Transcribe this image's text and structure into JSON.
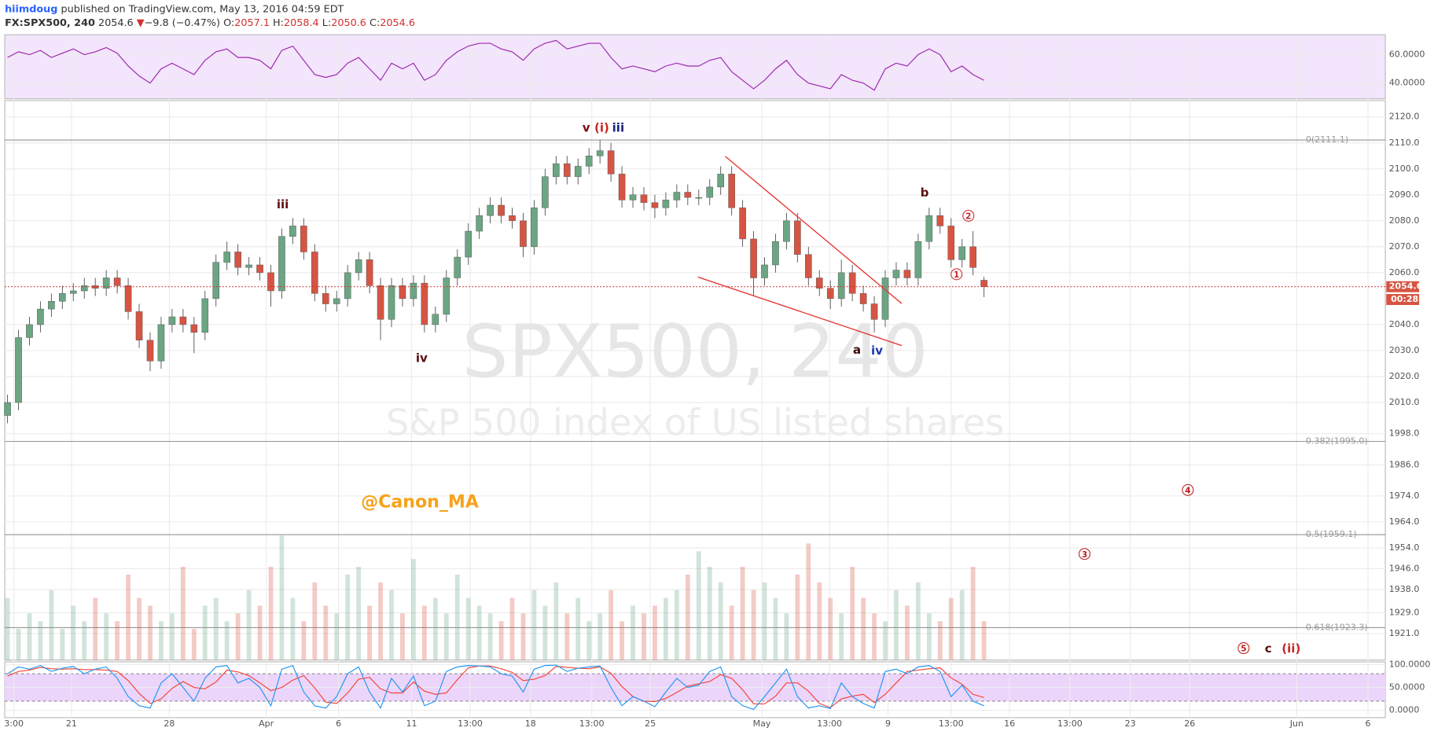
{
  "header": {
    "author": "hiimdoug",
    "published": "published on TradingView.com, May 13, 2016 04:59 EDT",
    "symbol": "FX:SPX500, 240",
    "arrow": "▼",
    "change": "−9.8 (−0.47%)",
    "ohlc_labels": [
      "O:",
      "H:",
      "L:",
      "C:"
    ]
  },
  "chart_data": {
    "type": "candlestick",
    "watermark": "SPX500, 240",
    "watermark_subtitle": "S&P 500 index of US listed shares",
    "signature": "@Canon_MA",
    "countdown": "00:28",
    "up_color": "#6ba583",
    "down_color": "#d75442",
    "grid": true,
    "xlim": [
      -0.25,
      125.58
    ],
    "xticks": [
      {
        "value": 0.58,
        "label": "3:00"
      },
      {
        "value": 5.83,
        "label": "21"
      },
      {
        "value": 14.75,
        "label": "28"
      },
      {
        "value": 23.58,
        "label": "Apr"
      },
      {
        "value": 30.17,
        "label": "6"
      },
      {
        "value": 36.83,
        "label": "11"
      },
      {
        "value": 42.17,
        "label": "13:00"
      },
      {
        "value": 47.67,
        "label": "18"
      },
      {
        "value": 53.25,
        "label": "13:00"
      },
      {
        "value": 58.58,
        "label": "25"
      },
      {
        "value": 68.75,
        "label": "May"
      },
      {
        "value": 74.92,
        "label": "13:00"
      },
      {
        "value": 80.25,
        "label": "9"
      },
      {
        "value": 86,
        "label": "13:00"
      },
      {
        "value": 91.33,
        "label": "16"
      },
      {
        "value": 96.83,
        "label": "13:00"
      },
      {
        "value": 102.33,
        "label": "23"
      },
      {
        "value": 107.75,
        "label": "26"
      },
      {
        "value": 117.5,
        "label": "Jun"
      },
      {
        "value": 124,
        "label": "6"
      }
    ],
    "ylim": [
      1910.8,
      2126.3
    ],
    "yticks": [
      {
        "value": 2120,
        "label": "2120.0"
      },
      {
        "value": 2110,
        "label": "2110.0"
      },
      {
        "value": 2100,
        "label": "2100.0"
      },
      {
        "value": 2090,
        "label": "2090.0"
      },
      {
        "value": 2080,
        "label": "2080.0"
      },
      {
        "value": 2070,
        "label": "2070.0"
      },
      {
        "value": 2060,
        "label": "2060.0"
      },
      {
        "value": 2040,
        "label": "2040.0"
      },
      {
        "value": 2030,
        "label": "2030.0"
      },
      {
        "value": 2020,
        "label": "2020.0"
      },
      {
        "value": 2010,
        "label": "2010.0"
      },
      {
        "value": 1998,
        "label": "1998.0"
      },
      {
        "value": 1986,
        "label": "1986.0"
      },
      {
        "value": 1974,
        "label": "1974.0"
      },
      {
        "value": 1964,
        "label": "1964.0"
      },
      {
        "value": 1954,
        "label": "1954.0"
      },
      {
        "value": 1946,
        "label": "1946.0"
      },
      {
        "value": 1938,
        "label": "1938.0"
      },
      {
        "value": 1929,
        "label": "1929.0"
      },
      {
        "value": 1921,
        "label": "1921.0"
      }
    ],
    "fib_levels": [
      {
        "value": 2111.1,
        "label": "0(2111.1)"
      },
      {
        "value": 1995.0,
        "label": "0.382(1995.0)"
      },
      {
        "value": 1959.1,
        "label": "0.5(1959.1)"
      },
      {
        "value": 1923.3,
        "label": "0.618(1923.3)"
      }
    ],
    "open": [
      2005,
      2010,
      2035,
      2040,
      2046,
      2049,
      2052,
      2053,
      2055,
      2054,
      2058,
      2055,
      2045,
      2034,
      2026,
      2040,
      2043,
      2040,
      2037,
      2050,
      2064,
      2068,
      2062,
      2063,
      2060,
      2053,
      2074,
      2078,
      2068,
      2052,
      2048,
      2050,
      2060,
      2065,
      2055,
      2042,
      2055,
      2050,
      2056,
      2040,
      2044,
      2058,
      2066,
      2076,
      2082,
      2086,
      2082,
      2080,
      2070,
      2085,
      2097,
      2102,
      2097,
      2101,
      2105,
      2107,
      2098,
      2088,
      2090,
      2087,
      2085,
      2088,
      2091,
      2089,
      2089,
      2093,
      2098,
      2085,
      2073,
      2058,
      2063,
      2072,
      2080,
      2067,
      2058,
      2054,
      2050,
      2060,
      2052,
      2048,
      2042,
      2058,
      2061,
      2058,
      2072,
      2082,
      2078,
      2065,
      2070,
      2057.1
    ],
    "high": [
      2013,
      2038,
      2043,
      2049,
      2052,
      2055,
      2056,
      2058,
      2058,
      2061,
      2061,
      2058,
      2048,
      2037,
      2043,
      2046,
      2046,
      2043,
      2053,
      2067,
      2072,
      2071,
      2066,
      2066,
      2063,
      2077,
      2081,
      2081,
      2071,
      2055,
      2053,
      2063,
      2068,
      2068,
      2058,
      2058,
      2058,
      2059,
      2059,
      2047,
      2061,
      2069,
      2079,
      2085,
      2089,
      2089,
      2085,
      2083,
      2088,
      2100,
      2105,
      2105,
      2104,
      2108,
      2111,
      2110,
      2101,
      2093,
      2093,
      2090,
      2091,
      2094,
      2094,
      2092,
      2096,
      2101,
      2101,
      2088,
      2076,
      2066,
      2075,
      2083,
      2083,
      2070,
      2061,
      2057,
      2065,
      2063,
      2055,
      2051,
      2061,
      2064,
      2064,
      2075,
      2085,
      2085,
      2081,
      2073,
      2076,
      2058.4
    ],
    "low": [
      2002,
      2007,
      2032,
      2037,
      2043,
      2046,
      2049,
      2050,
      2051,
      2051,
      2052,
      2042,
      2031,
      2022,
      2023,
      2037,
      2037,
      2029,
      2034,
      2047,
      2061,
      2059,
      2059,
      2057,
      2047,
      2050,
      2071,
      2065,
      2049,
      2045,
      2045,
      2047,
      2057,
      2052,
      2034,
      2039,
      2047,
      2047,
      2037,
      2037,
      2041,
      2055,
      2063,
      2073,
      2079,
      2079,
      2077,
      2066,
      2067,
      2082,
      2094,
      2094,
      2094,
      2098,
      2102,
      2095,
      2085,
      2085,
      2084,
      2081,
      2082,
      2085,
      2086,
      2086,
      2086,
      2090,
      2082,
      2070,
      2051,
      2055,
      2060,
      2069,
      2064,
      2055,
      2051,
      2046,
      2047,
      2049,
      2045,
      2037,
      2039,
      2055,
      2055,
      2055,
      2069,
      2075,
      2062,
      2062,
      2059,
      2050.6
    ],
    "close": [
      2010,
      2035,
      2040,
      2046,
      2049,
      2052,
      2053,
      2055,
      2054,
      2058,
      2055,
      2045,
      2034,
      2026,
      2040,
      2043,
      2040,
      2037,
      2050,
      2064,
      2068,
      2062,
      2063,
      2060,
      2053,
      2074,
      2078,
      2068,
      2052,
      2048,
      2050,
      2060,
      2065,
      2055,
      2042,
      2055,
      2050,
      2056,
      2040,
      2044,
      2058,
      2066,
      2076,
      2082,
      2086,
      2082,
      2080,
      2070,
      2085,
      2097,
      2102,
      2097,
      2101,
      2105,
      2107,
      2098,
      2088,
      2090,
      2087,
      2085,
      2088,
      2091,
      2089,
      2089,
      2093,
      2098,
      2085,
      2073,
      2058,
      2063,
      2072,
      2080,
      2067,
      2058,
      2054,
      2050,
      2060,
      2052,
      2048,
      2042,
      2058,
      2061,
      2058,
      2072,
      2082,
      2078,
      2065,
      2070,
      2062,
      2054.6
    ],
    "volume": [
      40,
      20,
      30,
      25,
      45,
      20,
      35,
      25,
      40,
      30,
      25,
      55,
      40,
      35,
      25,
      30,
      60,
      20,
      35,
      40,
      25,
      30,
      45,
      35,
      60,
      80,
      40,
      25,
      50,
      35,
      30,
      55,
      60,
      35,
      50,
      45,
      30,
      65,
      35,
      40,
      30,
      55,
      40,
      35,
      30,
      25,
      40,
      30,
      45,
      35,
      50,
      30,
      40,
      25,
      30,
      45,
      25,
      35,
      30,
      35,
      40,
      45,
      55,
      70,
      60,
      50,
      35,
      60,
      45,
      50,
      40,
      30,
      55,
      75,
      50,
      40,
      30,
      60,
      40,
      30,
      25,
      45,
      35,
      50,
      30,
      25,
      40,
      45,
      60,
      25
    ],
    "annotations": [
      {
        "text": "v"
      },
      {
        "text": "(i)"
      },
      {
        "text": "iii"
      },
      {
        "text": "iii"
      },
      {
        "text": "iv"
      },
      {
        "text": "a"
      },
      {
        "text": "iv"
      },
      {
        "text": "b"
      },
      {
        "text": "2"
      },
      {
        "text": "1"
      },
      {
        "text": "4"
      },
      {
        "text": "3"
      },
      {
        "text": "5"
      },
      {
        "text": "c"
      },
      {
        "text": "(ii)"
      }
    ],
    "rsi": {
      "ylim": [
        29,
        74
      ],
      "yticks": [
        {
          "value": 60,
          "label": "60.0000"
        },
        {
          "value": 40,
          "label": "40.0000"
        }
      ],
      "color": "#9c27b0",
      "values": [
        58,
        62,
        60,
        63,
        58,
        61,
        64,
        60,
        62,
        65,
        61,
        52,
        45,
        40,
        50,
        54,
        50,
        46,
        56,
        62,
        64,
        58,
        58,
        56,
        50,
        63,
        66,
        56,
        46,
        44,
        46,
        54,
        58,
        50,
        42,
        54,
        50,
        54,
        42,
        46,
        56,
        62,
        66,
        68,
        68,
        64,
        62,
        56,
        64,
        68,
        70,
        64,
        66,
        68,
        68,
        58,
        50,
        52,
        50,
        48,
        52,
        54,
        52,
        52,
        56,
        58,
        48,
        42,
        36,
        42,
        50,
        56,
        46,
        40,
        38,
        36,
        46,
        42,
        40,
        35,
        50,
        54,
        52,
        60,
        64,
        60,
        48,
        52,
        46,
        42
      ]
    },
    "stoch": {
      "ylim": [
        -16,
        106
      ],
      "yticks": [
        {
          "value": 100,
          "label": "100.0000"
        },
        {
          "value": 50,
          "label": "50.0000"
        },
        {
          "value": 0,
          "label": "0.0000"
        }
      ],
      "k": {
        "color": "#2196f3",
        "values": [
          80,
          95,
          90,
          98,
          85,
          92,
          96,
          80,
          90,
          95,
          70,
          30,
          10,
          5,
          60,
          80,
          50,
          20,
          70,
          95,
          98,
          60,
          70,
          50,
          10,
          90,
          98,
          40,
          10,
          5,
          30,
          80,
          95,
          40,
          5,
          70,
          40,
          75,
          10,
          20,
          85,
          95,
          98,
          97,
          95,
          80,
          75,
          40,
          90,
          98,
          99,
          85,
          92,
          95,
          97,
          50,
          10,
          30,
          20,
          8,
          40,
          70,
          50,
          55,
          85,
          95,
          30,
          10,
          2,
          30,
          60,
          90,
          30,
          5,
          10,
          4,
          60,
          30,
          15,
          5,
          85,
          90,
          80,
          95,
          98,
          85,
          30,
          55,
          20,
          10
        ]
      },
      "d": {
        "color": "#f44336",
        "values": [
          75,
          85,
          88,
          94,
          91,
          90,
          91,
          89,
          89,
          88,
          85,
          65,
          37,
          15,
          25,
          48,
          63,
          50,
          47,
          62,
          88,
          84,
          76,
          60,
          43,
          50,
          66,
          76,
          49,
          18,
          15,
          38,
          68,
          72,
          47,
          38,
          38,
          62,
          42,
          35,
          38,
          67,
          93,
          97,
          97,
          91,
          83,
          65,
          68,
          76,
          96,
          94,
          92,
          91,
          95,
          81,
          52,
          30,
          20,
          19,
          26,
          39,
          53,
          58,
          63,
          78,
          70,
          45,
          14,
          14,
          31,
          60,
          60,
          42,
          15,
          6,
          25,
          31,
          35,
          17,
          35,
          60,
          85,
          88,
          91,
          93,
          71,
          57,
          35,
          28
        ]
      }
    }
  }
}
